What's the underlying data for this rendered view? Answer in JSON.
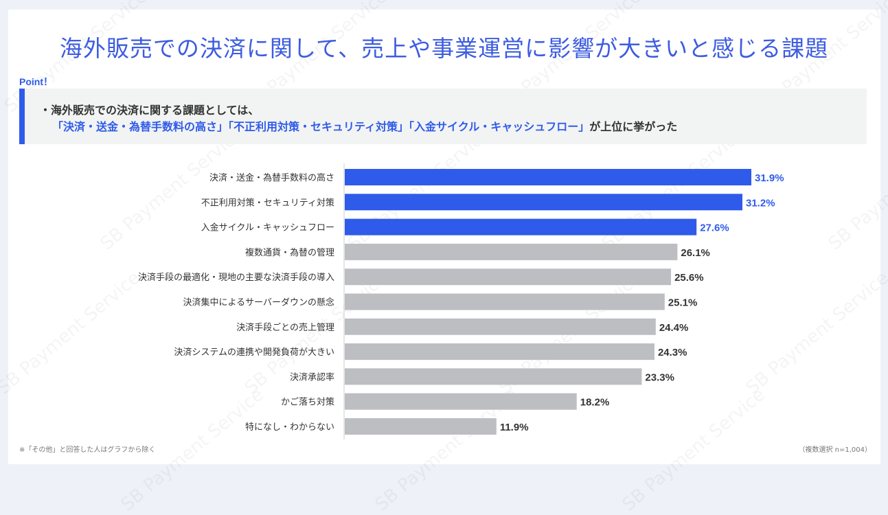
{
  "title": "海外販売での決済に関して、売上や事業運営に影響が大きいと感じる課題",
  "point_label": "Point！",
  "point_line1": "・海外販売での決済に関する課題としては、",
  "point_line2_highlight": "「決済・送金・為替手数料の高さ」「不正利用対策・セキュリティ対策」「入金サイクル・キャッシュフロー」",
  "point_line2_rest": "が上位に挙がった",
  "footnote_left": "※「その他」と回答した人はグラフから除く",
  "footnote_right": "（複数選択 n=1,004）",
  "watermark": "SB Payment Service",
  "colors": {
    "highlight": "#2f5bea",
    "other": "#bcbec2",
    "highlight_label": "#2f5bea",
    "other_label": "#333333"
  },
  "chart_data": {
    "type": "bar",
    "orientation": "horizontal",
    "categories": [
      "決済・送金・為替手数料の高さ",
      "不正利用対策・セキュリティ対策",
      "入金サイクル・キャッシュフロー",
      "複数通貨・為替の管理",
      "決済手段の最適化・現地の主要な決済手段の導入",
      "決済集中によるサーバーダウンの懸念",
      "決済手段ごとの売上管理",
      "決済システムの連携や開発負荷が大きい",
      "決済承認率",
      "かご落ち対策",
      "特になし・わからない"
    ],
    "values": [
      31.9,
      31.2,
      27.6,
      26.1,
      25.6,
      25.1,
      24.4,
      24.3,
      23.3,
      18.2,
      11.9
    ],
    "data_labels": [
      "31.9%",
      "31.2%",
      "27.6%",
      "26.1%",
      "25.6%",
      "25.1%",
      "24.4%",
      "24.3%",
      "23.3%",
      "18.2%",
      "11.9%"
    ],
    "highlighted_count": 3,
    "unit": "%",
    "grid": false
  }
}
